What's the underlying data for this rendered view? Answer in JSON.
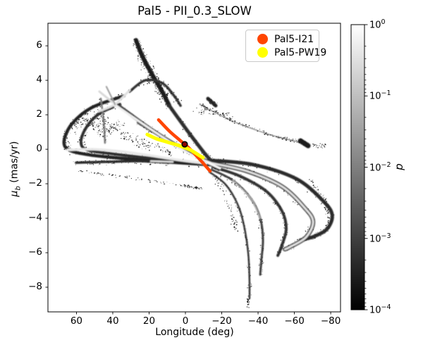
{
  "chart_data": {
    "type": "scatter",
    "title": "Pal5 - PII_0.3_SLOW",
    "xlabel": "Longitude (deg)",
    "ylabel": "μ_b (mas/yr)",
    "ylabel_parts": {
      "symbol": "μ",
      "subscript": "b",
      "rest": " (mas/yr)"
    },
    "xlim": [
      75.7,
      -85.4
    ],
    "ylim": [
      -9.43,
      7.31
    ],
    "xticks": [
      60,
      40,
      20,
      0,
      -20,
      -40,
      -60,
      -80
    ],
    "yticks": [
      6,
      4,
      2,
      0,
      -2,
      -4,
      -6,
      -8
    ],
    "grid": false,
    "colorbar": {
      "label": "p",
      "scale": "log",
      "range_low": "1e-4",
      "range_high": "1e0",
      "tick_exponents": [
        0,
        -1,
        -2,
        -3,
        -4
      ],
      "color_high": "#ffffff",
      "color_low": "#000000"
    },
    "legend": {
      "position": "upper right",
      "entries": [
        {
          "label": "Pal5-I21",
          "color": "#ff4500"
        },
        {
          "label": "Pal5-PW19",
          "color": "#ffff00"
        }
      ]
    },
    "series": [
      {
        "name": "Pal5-I21",
        "kind": "curve",
        "color": "#ff4500",
        "width": 4.5,
        "points": [
          [
            14.8,
            1.71
          ],
          [
            8.9,
            1.06
          ],
          [
            3.1,
            0.53
          ],
          [
            -1.9,
            0.08
          ],
          [
            -7.4,
            -0.53
          ],
          [
            -13.6,
            -1.27
          ]
        ]
      },
      {
        "name": "Pal5-PW19",
        "kind": "curve",
        "color": "#ffff00",
        "width": 5,
        "points": [
          [
            21.0,
            0.86
          ],
          [
            15.9,
            0.61
          ],
          [
            9.7,
            0.41
          ],
          [
            3.1,
            0.2
          ],
          [
            -2.7,
            -0.04
          ],
          [
            -7.8,
            -0.37
          ],
          [
            -9.7,
            -0.49
          ]
        ]
      },
      {
        "name": "progenitor",
        "kind": "marker",
        "color": "#8b0000",
        "edge": "#000000",
        "radius": 3.8,
        "point": [
          0.4,
          0.29
        ]
      }
    ],
    "density_streams": [
      {
        "name": "top-spur",
        "pts": [
          [
            27.2,
            6.33
          ],
          [
            23.7,
            5.39
          ],
          [
            18.3,
            4.33
          ],
          [
            12.8,
            3.35
          ],
          [
            8.9,
            2.53
          ]
        ],
        "w": 6,
        "c": "#1c1c1c",
        "sp": 170,
        "sd": 7
      },
      {
        "name": "spur-cont",
        "pts": [
          [
            8.9,
            2.53
          ],
          [
            -1.2,
            1.06
          ],
          [
            -11.3,
            -0.33
          ],
          [
            -18.3,
            -1.14
          ]
        ],
        "w": 5,
        "c": "#2e2e2e",
        "sp": 80,
        "sd": 5
      },
      {
        "name": "top-arch",
        "pts": [
          [
            30.7,
            3.35
          ],
          [
            22.1,
            4.0
          ],
          [
            12.8,
            3.84
          ],
          [
            6.2,
            3.1
          ],
          [
            2.7,
            2.53
          ]
        ],
        "w": 3.5,
        "c": "#333333",
        "sp": 90,
        "sd": 5
      },
      {
        "name": "hook-outer",
        "pts": [
          [
            33.8,
            3.1
          ],
          [
            51.7,
            2.41
          ],
          [
            62.5,
            1.47
          ],
          [
            66.8,
            0.49
          ],
          [
            64.1,
            -0.04
          ],
          [
            52.4,
            -0.33
          ],
          [
            34.2,
            -0.53
          ],
          [
            10.9,
            -0.73
          ],
          [
            -14.4,
            -0.9
          ]
        ],
        "w": 4.5,
        "c": "#222222",
        "sp": 210,
        "sd": 6
      },
      {
        "name": "hook-inner",
        "pts": [
          [
            36.1,
            2.61
          ],
          [
            47.8,
            2.04
          ],
          [
            55.1,
            1.18
          ],
          [
            57.5,
            0.37
          ],
          [
            54.0,
            -0.04
          ],
          [
            41.9,
            -0.24
          ],
          [
            21.4,
            -0.49
          ],
          [
            0.4,
            -0.69
          ]
        ],
        "w": 4,
        "c": "#2e2e2e",
        "sp": 120,
        "sd": 5
      },
      {
        "name": "lower-horiz",
        "pts": [
          [
            60.2,
            -0.78
          ],
          [
            43.9,
            -0.73
          ],
          [
            26.0,
            -0.69
          ],
          [
            8.9,
            -0.78
          ]
        ],
        "w": 3.5,
        "c": "#2a2a2a",
        "sp": 110,
        "sd": 5
      },
      {
        "name": "vert-connector",
        "pts": [
          [
            46.6,
            2.94
          ],
          [
            45.0,
            1.63
          ],
          [
            44.3,
            0.37
          ]
        ],
        "w": 2.5,
        "c": "#777777",
        "sp": 40,
        "sd": 4
      },
      {
        "name": "bundle-dark",
        "pts": [
          [
            36.9,
            2.53
          ],
          [
            18.6,
            1.14
          ],
          [
            0.4,
            -0.04
          ],
          [
            -15.1,
            -0.86
          ]
        ],
        "w": 5,
        "c": "#3a3a3a",
        "sp": 70,
        "sd": 6
      },
      {
        "name": "bundle-mid",
        "pts": [
          [
            26.0,
            1.55
          ],
          [
            8.2,
            0.41
          ],
          [
            -8.5,
            -0.57
          ],
          [
            -17.1,
            -1.06
          ]
        ],
        "w": 4,
        "c": "#555555",
        "sp": 50,
        "sd": 5
      },
      {
        "name": "fan-outer",
        "pts": [
          [
            -15.1,
            -0.65
          ],
          [
            -37.7,
            -0.9
          ],
          [
            -61.0,
            -1.71
          ],
          [
            -75.7,
            -2.98
          ],
          [
            -80.8,
            -3.8
          ],
          [
            -78.1,
            -4.61
          ],
          [
            -70.7,
            -5.06
          ],
          [
            -63.3,
            -5.27
          ]
        ],
        "w": 5,
        "c": "#2b2b2b",
        "sp": 180,
        "sd": 5
      },
      {
        "name": "fan-2-sheath",
        "pts": [
          [
            -15.1,
            -0.82
          ],
          [
            -33.8,
            -1.27
          ],
          [
            -53.2,
            -2.16
          ],
          [
            -65.6,
            -3.39
          ],
          [
            -70.3,
            -4.2
          ],
          [
            -66.4,
            -5.1
          ],
          [
            -57.5,
            -5.67
          ],
          [
            -54.8,
            -5.8
          ]
        ],
        "w": 6,
        "c": "#383838",
        "sp": 140,
        "sd": 5
      },
      {
        "name": "fan-3",
        "pts": [
          [
            -15.1,
            -1.02
          ],
          [
            -29.9,
            -1.55
          ],
          [
            -44.7,
            -2.45
          ],
          [
            -53.2,
            -3.59
          ],
          [
            -55.5,
            -4.61
          ],
          [
            -53.2,
            -5.55
          ],
          [
            -50.9,
            -6.16
          ]
        ],
        "w": 4,
        "c": "#303030",
        "sp": 120,
        "sd": 4
      },
      {
        "name": "fan-4",
        "pts": [
          [
            -14.4,
            -1.18
          ],
          [
            -26.0,
            -1.8
          ],
          [
            -36.1,
            -2.86
          ],
          [
            -41.2,
            -4.0
          ],
          [
            -42.7,
            -5.22
          ],
          [
            -41.9,
            -6.37
          ],
          [
            -41.2,
            -7.27
          ]
        ],
        "w": 3,
        "c": "#3c3c3c",
        "sp": 100,
        "sd": 4
      },
      {
        "name": "fan-5",
        "pts": [
          [
            -13.2,
            -1.31
          ],
          [
            -22.1,
            -2.04
          ],
          [
            -28.7,
            -3.18
          ],
          [
            -32.2,
            -4.41
          ],
          [
            -34.6,
            -6.04
          ],
          [
            -35.3,
            -7.67
          ],
          [
            -35.3,
            -8.65
          ]
        ],
        "w": 2.5,
        "c": "#333333",
        "sp": 90,
        "sd": 3.5
      },
      {
        "name": "trail-ne",
        "pts": [
          [
            -7.8,
            2.61
          ],
          [
            -26.0,
            1.63
          ],
          [
            -47.4,
            0.82
          ],
          [
            -62.9,
            0.41
          ]
        ],
        "w": 1,
        "c": "#555555",
        "sp": 150,
        "sd": 3
      },
      {
        "name": "blob-ne",
        "pts": [
          [
            -63.3,
            0.49
          ],
          [
            -67.6,
            0.2
          ]
        ],
        "w": 7,
        "c": "#1a1a1a",
        "sp": 45,
        "sd": 4
      },
      {
        "name": "blob-mid",
        "pts": [
          [
            -12.4,
            2.94
          ],
          [
            -16.7,
            2.53
          ]
        ],
        "w": 5,
        "c": "#222222",
        "sp": 30,
        "sd": 4
      },
      {
        "name": "tail-specks",
        "pts": [
          [
            -34.6,
            -8.65
          ],
          [
            -34.3,
            -9.2
          ]
        ],
        "w": 0,
        "c": "#111111",
        "sp": 25,
        "sd": 2.5
      },
      {
        "name": "right-specks",
        "pts": [
          [
            -68.7,
            -1.76
          ],
          [
            -76.5,
            -2.98
          ],
          [
            -79.6,
            -4.2
          ]
        ],
        "w": 0,
        "c": "#111111",
        "sp": 55,
        "sd": 4
      },
      {
        "name": "sw-trail",
        "pts": [
          [
            59.4,
            -1.27
          ],
          [
            32.2,
            -1.63
          ],
          [
            3.1,
            -2.08
          ],
          [
            -8.5,
            -2.29
          ]
        ],
        "w": 0,
        "c": "#111111",
        "sp": 110,
        "sd": 2.5
      },
      {
        "name": "left-fuzz",
        "pts": [
          [
            62.0,
            1.2
          ],
          [
            55.0,
            1.8
          ],
          [
            45.0,
            1.0
          ],
          [
            35.0,
            1.5
          ]
        ],
        "w": 0,
        "c": "#111111",
        "sp": 150,
        "sd": 10
      },
      {
        "name": "left-fuzz-2",
        "pts": [
          [
            50.0,
            2.2
          ],
          [
            40.0,
            1.2
          ],
          [
            30.0,
            0.6
          ],
          [
            20.0,
            0.2
          ]
        ],
        "w": 0,
        "c": "#111111",
        "sp": 120,
        "sd": 9
      },
      {
        "name": "spur-fuzz",
        "pts": [
          [
            25.0,
            5.5
          ],
          [
            20.0,
            4.5
          ],
          [
            15.0,
            3.5
          ],
          [
            10.0,
            3.0
          ]
        ],
        "w": 0,
        "c": "#111111",
        "sp": 120,
        "sd": 9
      },
      {
        "name": "ne-fuzz",
        "pts": [
          [
            -5.0,
            2.2
          ],
          [
            -15.0,
            2.2
          ],
          [
            -25.0,
            1.9
          ]
        ],
        "w": 0,
        "c": "#111111",
        "sp": 50,
        "sd": 6
      },
      {
        "name": "fan-left-specks",
        "pts": [
          [
            -17.0,
            -1.6
          ],
          [
            -22.0,
            -2.7
          ],
          [
            -26.0,
            -3.9
          ],
          [
            -28.0,
            -4.9
          ]
        ],
        "w": 0,
        "c": "#111111",
        "sp": 70,
        "sd": 5
      },
      {
        "name": "center-fuzz",
        "pts": [
          [
            18.0,
            0.3
          ],
          [
            12.0,
            0.0
          ],
          [
            8.0,
            -0.3
          ]
        ],
        "w": 0,
        "c": "#111111",
        "sp": 40,
        "sd": 5
      },
      {
        "name": "far-right-specks",
        "pts": [
          [
            -70.0,
            0.3
          ],
          [
            -75.0,
            0.15
          ],
          [
            -78.0,
            0.3
          ]
        ],
        "w": 0,
        "c": "#111111",
        "sp": 25,
        "sd": 4
      },
      {
        "name": "x-arm-1",
        "pts": [
          [
            47.4,
            3.35
          ],
          [
            38.8,
            2.61
          ]
        ],
        "w": 3,
        "c": "#d8d8d8",
        "sp": 0,
        "sd": 0
      },
      {
        "name": "x-arm-2",
        "pts": [
          [
            47.8,
            2.2
          ],
          [
            38.8,
            2.61
          ],
          [
            30.7,
            3.43
          ]
        ],
        "w": 3,
        "c": "#e0e0e0",
        "sp": 0,
        "sd": 0
      },
      {
        "name": "x-knot",
        "pts": [
          [
            39.2,
            2.69
          ],
          [
            38.4,
            2.49
          ]
        ],
        "w": 4.5,
        "c": "#ededed",
        "sp": 0,
        "sd": 0
      },
      {
        "name": "x-arm-faint",
        "pts": [
          [
            43.5,
            3.63
          ],
          [
            38.4,
            2.53
          ]
        ],
        "w": 2,
        "c": "#999999",
        "sp": 0,
        "sd": 0
      },
      {
        "name": "bundle-bright",
        "pts": [
          [
            38.1,
            2.53
          ],
          [
            15.9,
            0.94
          ],
          [
            -1.9,
            -0.24
          ],
          [
            -15.5,
            -0.86
          ]
        ],
        "w": 3,
        "c": "#f0f0f0",
        "sp": 0,
        "sd": 0
      },
      {
        "name": "hook-bright",
        "pts": [
          [
            64.9,
            -0.04
          ],
          [
            50.9,
            0.0
          ],
          [
            36.1,
            -0.12
          ],
          [
            21.4,
            -0.33
          ],
          [
            4.3,
            -0.61
          ],
          [
            -11.3,
            -0.82
          ]
        ],
        "w": 3.5,
        "c": "#e8e8e8",
        "sp": 0,
        "sd": 0
      },
      {
        "name": "lower-horiz-bright",
        "pts": [
          [
            19.0,
            -0.69
          ],
          [
            7.0,
            -0.73
          ]
        ],
        "w": 2.5,
        "c": "#dddddd",
        "sp": 0,
        "sd": 0
      },
      {
        "name": "fan-2-bright",
        "pts": [
          [
            -15.1,
            -0.82
          ],
          [
            -33.8,
            -1.27
          ],
          [
            -53.2,
            -2.16
          ],
          [
            -65.6,
            -3.39
          ],
          [
            -70.3,
            -4.2
          ],
          [
            -66.4,
            -5.1
          ],
          [
            -57.5,
            -5.67
          ],
          [
            -54.8,
            -5.8
          ]
        ],
        "w": 2.8,
        "c": "#e4e4e4",
        "sp": 0,
        "sd": 0
      },
      {
        "name": "fan-4-bright",
        "pts": [
          [
            -26.0,
            -1.8
          ],
          [
            -36.1,
            -2.86
          ],
          [
            -41.2,
            -4.0
          ]
        ],
        "w": 1.5,
        "c": "#bbbbbb",
        "sp": 0,
        "sd": 0
      },
      {
        "name": "pinch-bright",
        "pts": [
          [
            -12.4,
            -0.78
          ],
          [
            -19.0,
            -1.1
          ]
        ],
        "w": 3,
        "c": "#fafafa",
        "sp": 0,
        "sd": 0
      }
    ]
  }
}
